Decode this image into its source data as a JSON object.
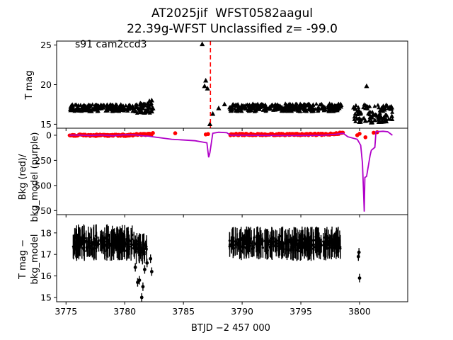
{
  "chart_data": {
    "type": "scatter",
    "title_line1": "AT2025jif  WFST0582aagul",
    "title_line2": "22.39g-WFST Unclassified z= -99.0",
    "xlabel": "BTJD −2 457 000",
    "x_ticks": [
      3775,
      3780,
      3785,
      3790,
      3795,
      3800
    ],
    "xlim": [
      3774.2,
      3804.1
    ],
    "vline": {
      "x": 3787.3,
      "color": "#ff0000",
      "style": "dashed"
    },
    "panels": [
      {
        "name": "lightcurve",
        "ylabel": "T mag",
        "ylim": [
          25.5,
          14.5
        ],
        "inverted": true,
        "y_ticks": [
          15,
          20,
          25
        ],
        "annotation": "s91 cam2ccd3",
        "series": [
          {
            "marker": "triangle",
            "color": "#000000",
            "points": [
              [
                3775.5,
                16.9
              ],
              [
                3776.0,
                17.1
              ],
              [
                3776.5,
                17.0
              ],
              [
                3777.0,
                16.8
              ],
              [
                3777.5,
                17.2
              ],
              [
                3778.0,
                17.0
              ],
              [
                3778.5,
                16.9
              ],
              [
                3779.0,
                17.1
              ],
              [
                3779.5,
                17.0
              ],
              [
                3780.0,
                16.9
              ],
              [
                3780.5,
                17.1
              ],
              [
                3781.0,
                17.2
              ],
              [
                3781.3,
                16.8
              ],
              [
                3781.6,
                17.5
              ],
              [
                3781.9,
                16.7
              ],
              [
                3782.1,
                17.9
              ],
              [
                3782.3,
                18.0
              ],
              [
                3782.4,
                17.0
              ],
              [
                3786.8,
                19.8
              ],
              [
                3786.9,
                20.5
              ],
              [
                3787.05,
                19.5
              ],
              [
                3786.6,
                25.1
              ],
              [
                3787.25,
                15.0
              ],
              [
                3787.5,
                16.3
              ],
              [
                3788.0,
                17.0
              ],
              [
                3788.5,
                17.5
              ],
              [
                3789.0,
                16.9
              ],
              [
                3790.0,
                17.1
              ],
              [
                3791.0,
                17.0
              ],
              [
                3792.0,
                17.2
              ],
              [
                3793.0,
                16.9
              ],
              [
                3794.0,
                17.0
              ],
              [
                3795.0,
                17.1
              ],
              [
                3796.0,
                17.0
              ],
              [
                3797.0,
                16.9
              ],
              [
                3798.0,
                17.1
              ],
              [
                3798.4,
                17.2
              ],
              [
                3799.5,
                17.1
              ],
              [
                3800.0,
                15.7
              ],
              [
                3800.5,
                15.4
              ],
              [
                3800.6,
                19.8
              ],
              [
                3801.0,
                15.2
              ],
              [
                3801.3,
                15.5
              ],
              [
                3802.0,
                16.9
              ],
              [
                3802.7,
                17.2
              ]
            ]
          }
        ],
        "bands": [
          {
            "x0": 3775.3,
            "x1": 3780.8,
            "y_low": 17.5,
            "y_high": 16.6
          },
          {
            "x0": 3780.8,
            "x1": 3782.4,
            "y_low": 17.7,
            "y_high": 16.4
          },
          {
            "x0": 3788.9,
            "x1": 3798.5,
            "y_low": 17.6,
            "y_high": 16.6
          },
          {
            "x0": 3799.5,
            "x1": 3802.8,
            "y_low": 17.5,
            "y_high": 15.2
          }
        ]
      },
      {
        "name": "background",
        "ylabel_line1": "Bkg (red)/",
        "ylabel_line2": "bkg_model (purple)",
        "ylim": [
          -70,
          790
        ],
        "y_ticks": [
          0,
          250,
          500,
          750
        ],
        "series": [
          {
            "name": "Bkg",
            "color": "#ff0000",
            "marker": "dot",
            "points": [
              [
                3775.5,
                0
              ],
              [
                3776.5,
                -5
              ],
              [
                3777.5,
                2
              ],
              [
                3778.5,
                -3
              ],
              [
                3779.5,
                0
              ],
              [
                3780.5,
                -8
              ],
              [
                3781.0,
                -10
              ],
              [
                3781.5,
                -8
              ],
              [
                3782.0,
                -15
              ],
              [
                3782.4,
                -22
              ],
              [
                3784.3,
                -20
              ],
              [
                3786.9,
                -8
              ],
              [
                3787.1,
                -12
              ],
              [
                3789.0,
                0
              ],
              [
                3790.0,
                -2
              ],
              [
                3791.0,
                -3
              ],
              [
                3792.0,
                -2
              ],
              [
                3793.0,
                -4
              ],
              [
                3794.0,
                -3
              ],
              [
                3795.0,
                -5
              ],
              [
                3796.0,
                -5
              ],
              [
                3797.0,
                -6
              ],
              [
                3797.5,
                -12
              ],
              [
                3798.0,
                -20
              ],
              [
                3798.5,
                -25
              ],
              [
                3799.8,
                0
              ],
              [
                3800.0,
                -15
              ],
              [
                3800.5,
                20
              ],
              [
                3801.2,
                -25
              ],
              [
                3801.5,
                -30
              ]
            ]
          },
          {
            "name": "bkg_model",
            "color": "#b000c8",
            "marker": "line",
            "points": [
              [
                3775.3,
                0
              ],
              [
                3776.0,
                -2
              ],
              [
                3777.0,
                3
              ],
              [
                3778.0,
                -2
              ],
              [
                3779.0,
                5
              ],
              [
                3780.0,
                -5
              ],
              [
                3780.8,
                -4
              ],
              [
                3781.5,
                5
              ],
              [
                3782.0,
                8
              ],
              [
                3782.4,
                15
              ],
              [
                3784.0,
                40
              ],
              [
                3786.0,
                55
              ],
              [
                3787.0,
                75
              ],
              [
                3787.15,
                220
              ],
              [
                3787.25,
                175
              ],
              [
                3787.35,
                100
              ],
              [
                3787.5,
                -20
              ],
              [
                3788.0,
                -30
              ],
              [
                3788.7,
                -25
              ],
              [
                3789.0,
                0
              ],
              [
                3790.0,
                0
              ],
              [
                3792.0,
                2
              ],
              [
                3794.0,
                3
              ],
              [
                3796.0,
                2
              ],
              [
                3797.0,
                0
              ],
              [
                3798.0,
                -10
              ],
              [
                3798.6,
                -20
              ],
              [
                3799.0,
                15
              ],
              [
                3799.8,
                40
              ],
              [
                3800.1,
                100
              ],
              [
                3800.25,
                280
              ],
              [
                3800.35,
                600
              ],
              [
                3800.4,
                760
              ],
              [
                3800.45,
                420
              ],
              [
                3800.6,
                410
              ],
              [
                3800.9,
                200
              ],
              [
                3801.0,
                150
              ],
              [
                3801.3,
                120
              ],
              [
                3801.4,
                -35
              ],
              [
                3802.0,
                -40
              ],
              [
                3802.4,
                -35
              ],
              [
                3802.8,
                0
              ]
            ]
          }
        ]
      },
      {
        "name": "difference",
        "ylabel_line1": "T mag −",
        "ylabel_line2": "bkg_model",
        "ylim": [
          18.85,
          14.8
        ],
        "inverted": true,
        "y_ticks": [
          15,
          16,
          17,
          18
        ],
        "series": [
          {
            "color": "#000000",
            "marker": "errorbar-dot",
            "points": [
              [
                3780.9,
                16.4
              ],
              [
                3781.1,
                15.7
              ],
              [
                3781.25,
                15.8
              ],
              [
                3781.45,
                15.0
              ],
              [
                3781.55,
                15.5
              ],
              [
                3781.7,
                16.3
              ],
              [
                3781.9,
                16.6
              ],
              [
                3782.2,
                16.8
              ],
              [
                3782.3,
                16.2
              ],
              [
                3800.0,
                15.9
              ],
              [
                3799.9,
                16.9
              ],
              [
                3799.95,
                17.1
              ]
            ]
          }
        ],
        "bands": [
          {
            "x0": 3775.6,
            "x1": 3780.9,
            "y_low": 18.4,
            "y_high": 16.7
          },
          {
            "x0": 3780.9,
            "x1": 3781.9,
            "y_low": 18.0,
            "y_high": 16.5
          },
          {
            "x0": 3788.9,
            "x1": 3798.4,
            "y_low": 18.3,
            "y_high": 16.7
          }
        ]
      }
    ]
  }
}
